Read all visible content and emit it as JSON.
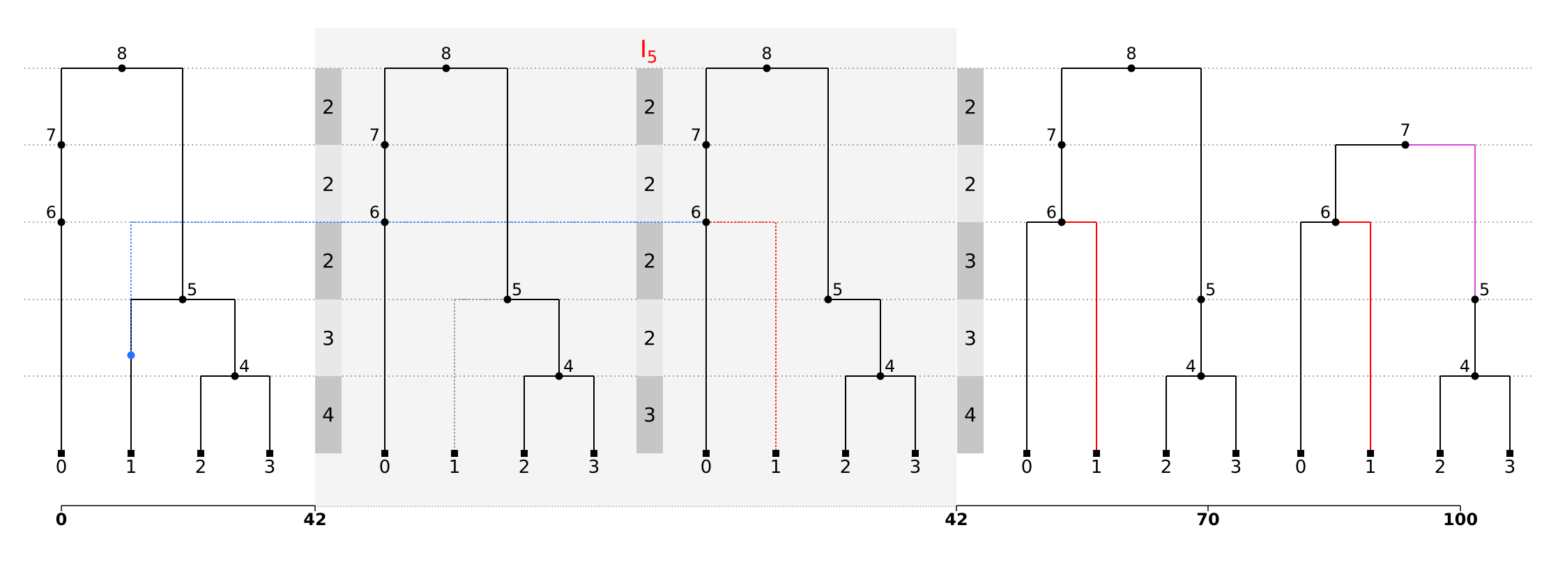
{
  "title": {
    "letter": "I",
    "subscript": "5",
    "color": "#ff0000"
  },
  "colors": {
    "tree": "#000000",
    "highlight_region": "#f4f4f4",
    "bar_dark": "#c6c6c6",
    "bar_light": "#e8e8e8",
    "hline": "#777777",
    "recombination_blue": "#1f77ff",
    "red_edge": "#ff0000",
    "magenta_edge": "#dd44dd",
    "ghost_edge": "#888888"
  },
  "node_levels": [
    "8",
    "7",
    "6",
    "5",
    "4"
  ],
  "trees": [
    {
      "leaves": [
        "0",
        "1",
        "2",
        "3"
      ],
      "nodes": [
        "8",
        "7",
        "6",
        "5",
        "4"
      ]
    },
    {
      "leaves": [
        "0",
        "1",
        "2",
        "3"
      ],
      "nodes": [
        "8",
        "7",
        "6",
        "5",
        "4"
      ]
    },
    {
      "leaves": [
        "0",
        "1",
        "2",
        "3"
      ],
      "nodes": [
        "8",
        "7",
        "6",
        "5",
        "4"
      ]
    },
    {
      "leaves": [
        "0",
        "1",
        "2",
        "3"
      ],
      "nodes": [
        "8",
        "7",
        "6",
        "5",
        "4"
      ]
    },
    {
      "leaves": [
        "0",
        "1",
        "2",
        "3"
      ],
      "nodes": [
        "7",
        "6",
        "5",
        "4"
      ]
    }
  ],
  "bars": [
    [
      "2",
      "2",
      "2",
      "3",
      "4"
    ],
    [
      "2",
      "2",
      "2",
      "2",
      "3"
    ],
    [
      "2",
      "2",
      "3",
      "3",
      "4"
    ]
  ],
  "axis": {
    "ticks": [
      "0",
      "42",
      "42",
      "70",
      "100"
    ]
  }
}
